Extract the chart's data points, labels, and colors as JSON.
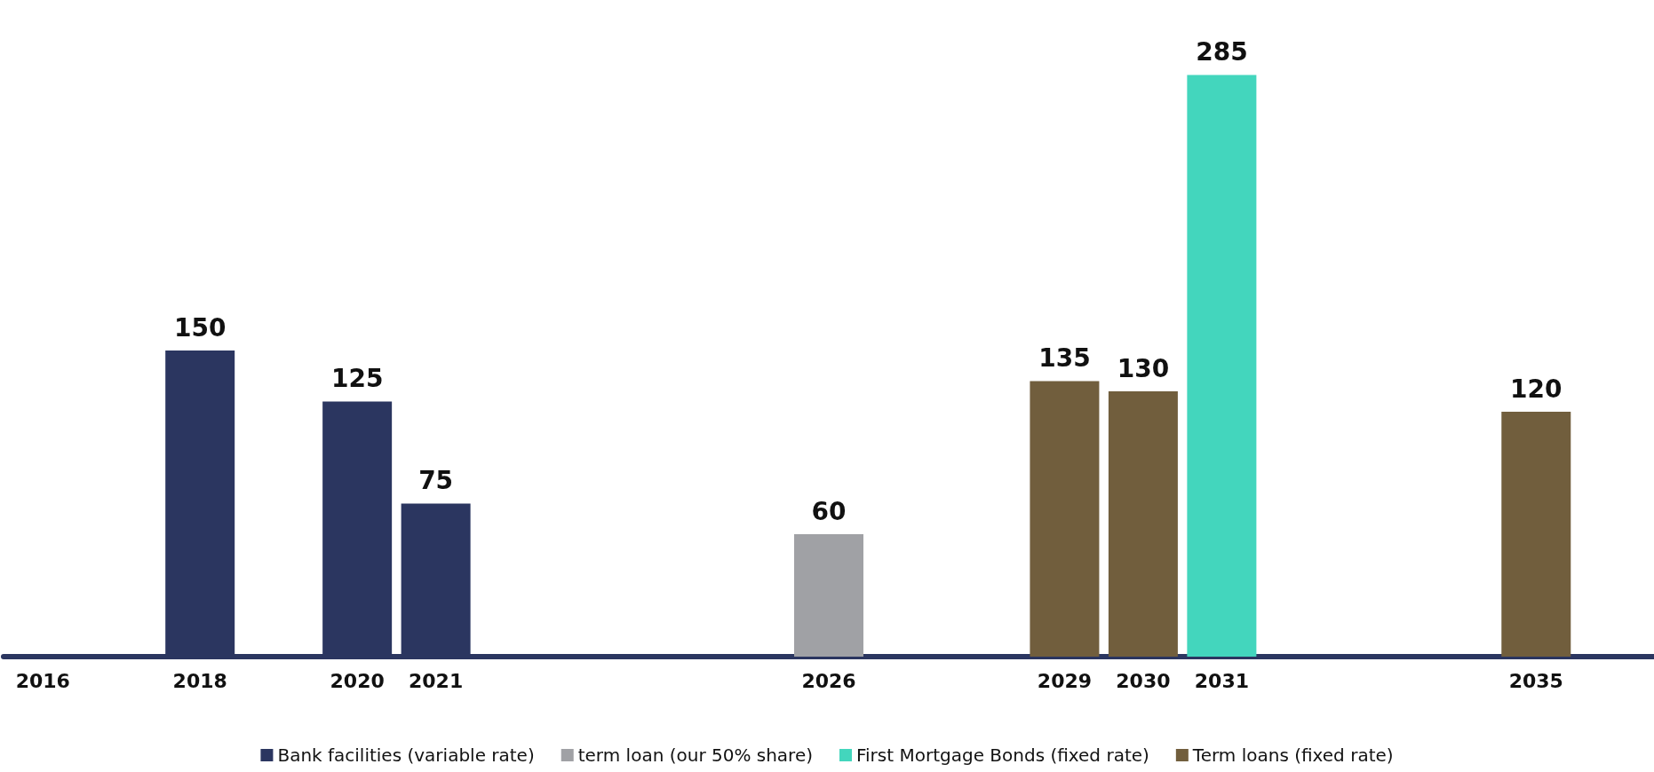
{
  "chart_data": {
    "type": "bar",
    "stacked": true,
    "data_labels": true,
    "legend": "bottom",
    "tick_labels": "x",
    "categories": [
      "2016",
      null,
      "2018",
      null,
      "2020",
      "2021",
      null,
      null,
      null,
      null,
      "2026",
      null,
      null,
      "2029",
      "2030",
      "2031",
      null,
      null,
      null,
      "2035",
      null
    ],
    "series": [
      {
        "name": "Bank facilities (variable rate)",
        "color": "#2b3660",
        "values": [
          null,
          null,
          150,
          null,
          125,
          75,
          null,
          null,
          null,
          null,
          null,
          null,
          null,
          null,
          null,
          null,
          null,
          null,
          null,
          null,
          null
        ]
      },
      {
        "name": "term loan (our 50% share)",
        "color": "#a0a1a5",
        "values": [
          null,
          null,
          null,
          null,
          null,
          null,
          null,
          null,
          null,
          null,
          60,
          null,
          null,
          null,
          null,
          null,
          null,
          null,
          null,
          null,
          null
        ]
      },
      {
        "name": "First Mortgage Bonds (fixed rate)",
        "color": "#43d6bd",
        "values": [
          null,
          null,
          null,
          null,
          null,
          null,
          null,
          null,
          null,
          null,
          null,
          null,
          null,
          null,
          null,
          285,
          null,
          null,
          null,
          null,
          null
        ]
      },
      {
        "name": "Term loans (fixed rate)",
        "color": "#715e3d",
        "values": [
          null,
          null,
          null,
          null,
          null,
          null,
          null,
          null,
          null,
          null,
          null,
          null,
          null,
          135,
          130,
          null,
          null,
          null,
          null,
          120,
          null
        ]
      }
    ]
  }
}
